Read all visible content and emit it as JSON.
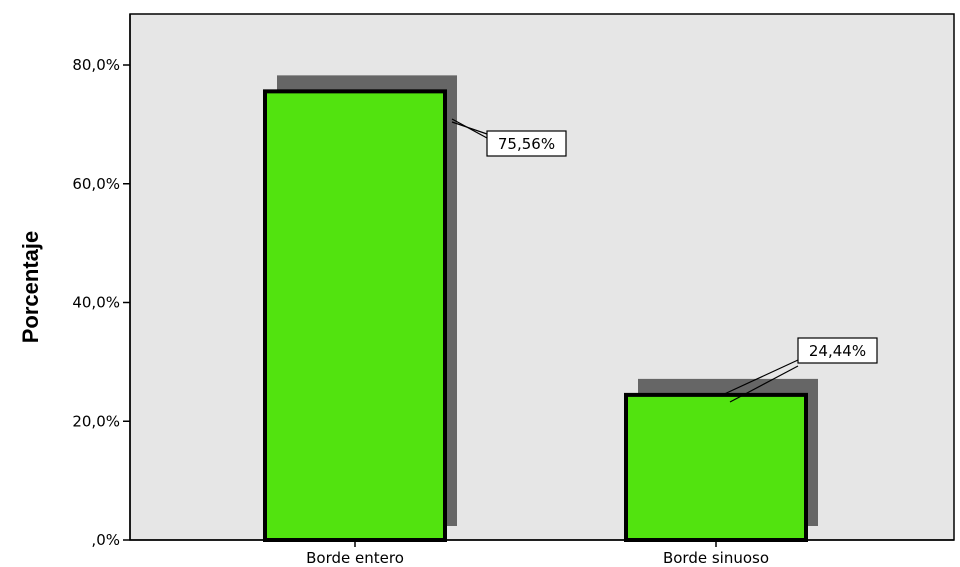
{
  "chart_data": {
    "type": "bar",
    "categories": [
      "Borde entero",
      "Borde sinuoso"
    ],
    "values": [
      75.56,
      24.44
    ],
    "data_labels": [
      "75,56%",
      "24,44%"
    ],
    "ylabel": "Porcentaje",
    "xlabel": "",
    "ylim": [
      0,
      80
    ],
    "yticks": [
      0,
      20,
      40,
      60,
      80
    ],
    "ytick_labels": [
      ",0%",
      "20,0%",
      "40,0%",
      "60,0%",
      "80,0%"
    ],
    "bar_color": "#52e30f",
    "shadow_color": "#666666",
    "plot_background": "#e6e6e6",
    "grid": false,
    "legend": "none"
  }
}
